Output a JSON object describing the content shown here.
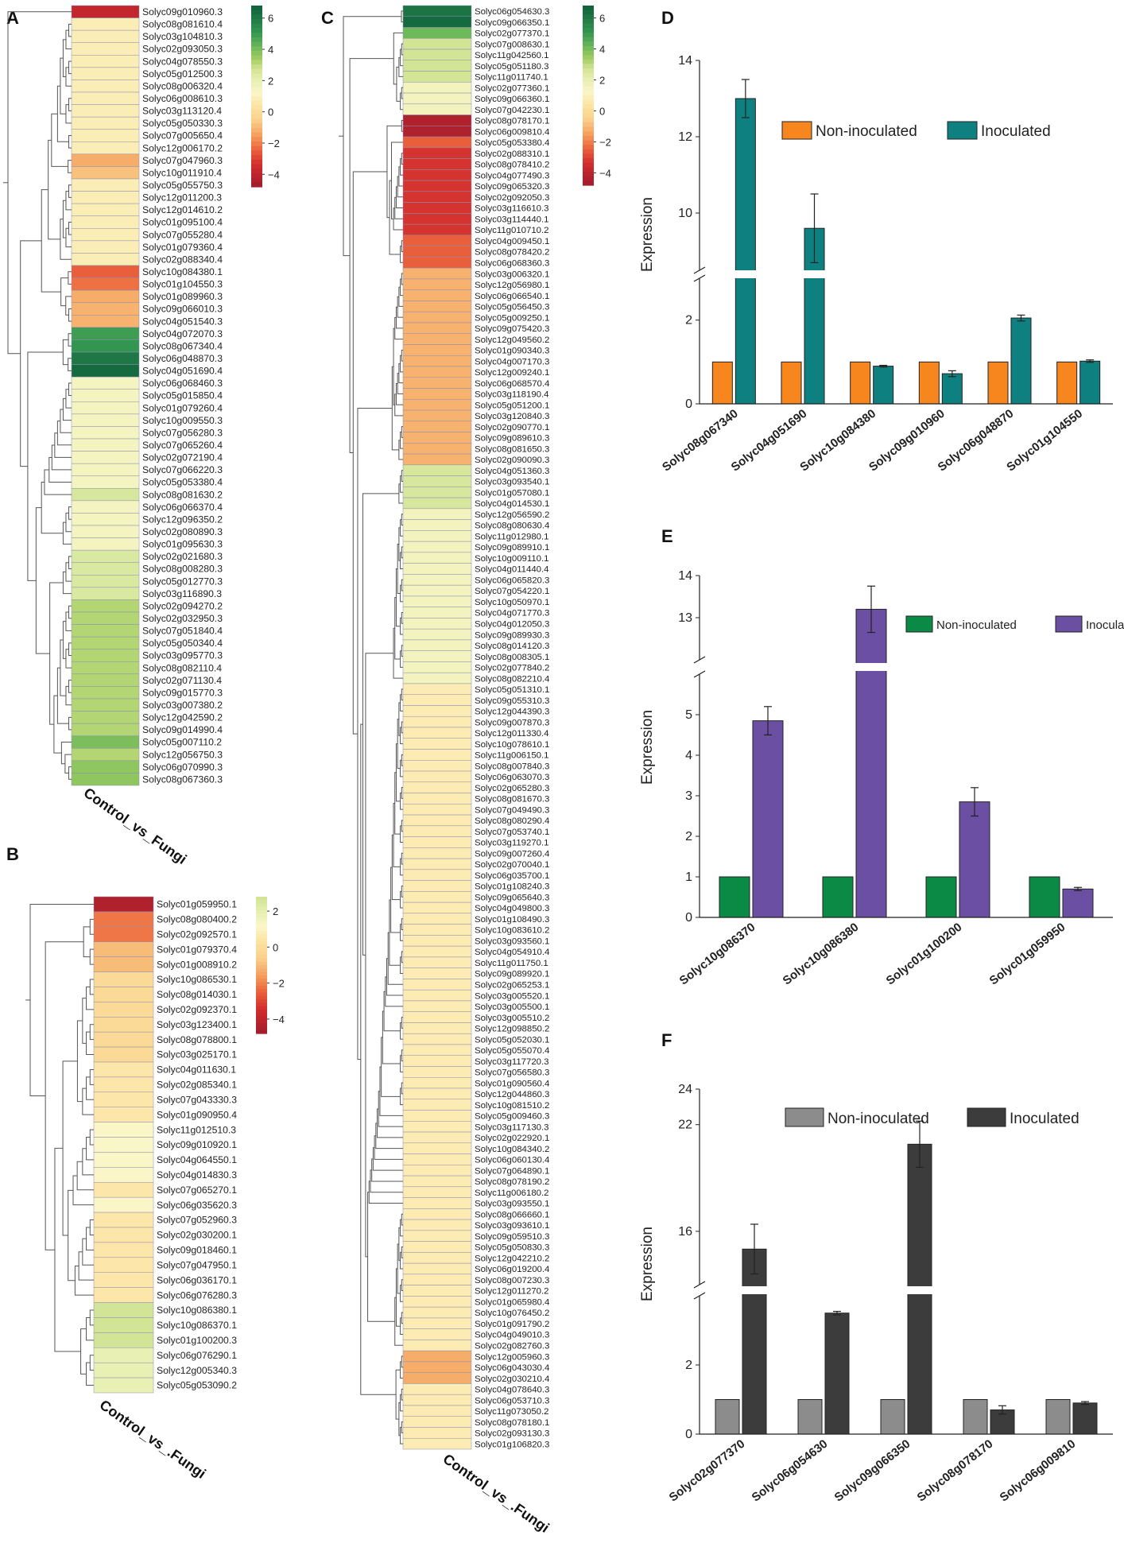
{
  "heatmaps": [
    {
      "panel": "A",
      "column_label": "Control_vs_Fungi",
      "scale_ticks": [
        "6",
        "4",
        "2",
        "0",
        "−2",
        "−4"
      ],
      "genes": [
        [
          "Solyc09g010960.3",
          -4
        ],
        [
          "Solyc08g081610.4",
          0.8
        ],
        [
          "Solyc03g104810.3",
          0.8
        ],
        [
          "Solyc02g093050.3",
          0.8
        ],
        [
          "Solyc04g078550.3",
          0.8
        ],
        [
          "Solyc05g012500.3",
          0.8
        ],
        [
          "Solyc08g006320.4",
          0.8
        ],
        [
          "Solyc06g008610.3",
          0.8
        ],
        [
          "Solyc03g113120.4",
          0.8
        ],
        [
          "Solyc05g050330.3",
          0.8
        ],
        [
          "Solyc07g005650.4",
          0.8
        ],
        [
          "Solyc12g006170.2",
          0.8
        ],
        [
          "Solyc07g047960.3",
          -1.3
        ],
        [
          "Solyc10g011910.4",
          -0.9
        ],
        [
          "Solyc05g055750.3",
          0.8
        ],
        [
          "Solyc12g011200.3",
          0.8
        ],
        [
          "Solyc12g014610.2",
          0.8
        ],
        [
          "Solyc01g095100.4",
          0.8
        ],
        [
          "Solyc07g055280.4",
          0.8
        ],
        [
          "Solyc01g079360.4",
          0.8
        ],
        [
          "Solyc02g088340.4",
          0.8
        ],
        [
          "Solyc10g084380.1",
          -2.6
        ],
        [
          "Solyc01g104550.3",
          -2.3
        ],
        [
          "Solyc01g089960.3",
          -1.3
        ],
        [
          "Solyc09g066010.3",
          -1.2
        ],
        [
          "Solyc04g051540.3",
          -1.2
        ],
        [
          "Solyc04g072070.3",
          5
        ],
        [
          "Solyc08g067340.4",
          5.2
        ],
        [
          "Solyc06g048870.3",
          6.2
        ],
        [
          "Solyc04g051690.4",
          6.6
        ],
        [
          "Solyc06g068460.3",
          1.5
        ],
        [
          "Solyc05g015850.4",
          1.5
        ],
        [
          "Solyc01g079260.4",
          1.5
        ],
        [
          "Solyc10g009550.3",
          1.5
        ],
        [
          "Solyc07g056280.3",
          1.5
        ],
        [
          "Solyc07g065260.4",
          1.5
        ],
        [
          "Solyc02g072190.4",
          1.5
        ],
        [
          "Solyc07g066220.3",
          1.5
        ],
        [
          "Solyc05g053380.4",
          1.5
        ],
        [
          "Solyc08g081630.2",
          2.6
        ],
        [
          "Solyc06g066370.4",
          1.5
        ],
        [
          "Solyc12g096350.2",
          1.5
        ],
        [
          "Solyc02g080890.3",
          1.5
        ],
        [
          "Solyc01g095630.3",
          1.5
        ],
        [
          "Solyc02g021680.3",
          2.5
        ],
        [
          "Solyc08g008280.3",
          2.5
        ],
        [
          "Solyc05g012770.3",
          2.5
        ],
        [
          "Solyc03g116890.3",
          2.5
        ],
        [
          "Solyc02g094270.2",
          3.2
        ],
        [
          "Solyc02g032950.3",
          3.2
        ],
        [
          "Solyc07g051840.4",
          3.2
        ],
        [
          "Solyc05g050340.4",
          3.2
        ],
        [
          "Solyc03g095770.3",
          3.2
        ],
        [
          "Solyc08g082110.4",
          3.2
        ],
        [
          "Solyc02g071130.4",
          3.2
        ],
        [
          "Solyc09g015770.3",
          3.2
        ],
        [
          "Solyc03g007380.2",
          3.2
        ],
        [
          "Solyc12g042590.2",
          3.2
        ],
        [
          "Solyc09g014990.4",
          3.2
        ],
        [
          "Solyc05g007110.2",
          4
        ],
        [
          "Solyc12g056750.3",
          3.2
        ],
        [
          "Solyc06g070990.3",
          3.7
        ],
        [
          "Solyc08g067360.3",
          3.7
        ]
      ]
    },
    {
      "panel": "B",
      "column_label": "Control_vs_.Fungi",
      "scale_ticks": [
        "2",
        "0",
        "−2",
        "−4"
      ],
      "genes": [
        [
          "Solyc01g059950.1",
          -4.5
        ],
        [
          "Solyc08g080400.2",
          -2.2
        ],
        [
          "Solyc02g092570.1",
          -2.2
        ],
        [
          "Solyc01g079370.4",
          -1.0
        ],
        [
          "Solyc01g008910.2",
          -1.0
        ],
        [
          "Solyc10g086530.1",
          -0.1
        ],
        [
          "Solyc08g014030.1",
          -0.1
        ],
        [
          "Solyc02g092370.1",
          -0.1
        ],
        [
          "Solyc03g123400.1",
          -0.1
        ],
        [
          "Solyc08g078800.1",
          -0.1
        ],
        [
          "Solyc03g025170.1",
          -0.1
        ],
        [
          "Solyc04g011630.1",
          0.5
        ],
        [
          "Solyc02g085340.1",
          0.5
        ],
        [
          "Solyc07g043330.3",
          0.5
        ],
        [
          "Solyc01g090950.4",
          0.5
        ],
        [
          "Solyc11g012510.3",
          1.2
        ],
        [
          "Solyc09g010920.1",
          1.2
        ],
        [
          "Solyc04g064550.1",
          1.2
        ],
        [
          "Solyc04g014830.3",
          1.2
        ],
        [
          "Solyc07g065270.1",
          0.5
        ],
        [
          "Solyc06g035620.3",
          1.2
        ],
        [
          "Solyc07g052960.3",
          0.5
        ],
        [
          "Solyc02g030200.1",
          0.5
        ],
        [
          "Solyc09g018460.1",
          0.5
        ],
        [
          "Solyc07g047950.1",
          0.5
        ],
        [
          "Solyc06g036170.1",
          0.5
        ],
        [
          "Solyc06g076280.3",
          0.5
        ],
        [
          "Solyc10g086380.1",
          2.8
        ],
        [
          "Solyc10g086370.1",
          2.8
        ],
        [
          "Solyc01g100200.3",
          2.8
        ],
        [
          "Solyc06g076290.1",
          2.0
        ],
        [
          "Solyc12g005340.3",
          2.0
        ],
        [
          "Solyc05g053090.2",
          2.0
        ]
      ]
    },
    {
      "panel": "C",
      "column_label": "Control_vs_.Fungi",
      "scale_ticks": [
        "6",
        "4",
        "2",
        "0",
        "−2",
        "−4"
      ],
      "genes": [
        [
          "Solyc06g054630.3",
          6.3
        ],
        [
          "Solyc09g066350.1",
          6.6
        ],
        [
          "Solyc02g077370.1",
          4.2
        ],
        [
          "Solyc07g008630.1",
          2.8
        ],
        [
          "Solyc11g042560.1",
          2.8
        ],
        [
          "Solyc05g051180.3",
          2.8
        ],
        [
          "Solyc11g011740.1",
          2.8
        ],
        [
          "Solyc02g077360.1",
          1.6
        ],
        [
          "Solyc09g066360.1",
          1.6
        ],
        [
          "Solyc07g042230.1",
          1.6
        ],
        [
          "Solyc08g078170.1",
          -4.5
        ],
        [
          "Solyc06g009810.4",
          -4.5
        ],
        [
          "Solyc05g053380.4",
          -2.6
        ],
        [
          "Solyc02g088310.1",
          -3.4
        ],
        [
          "Solyc08g078410.2",
          -3.4
        ],
        [
          "Solyc04g077490.3",
          -3.4
        ],
        [
          "Solyc09g065320.3",
          -3.4
        ],
        [
          "Solyc02g092050.3",
          -3.4
        ],
        [
          "Solyc03g116610.3",
          -3.4
        ],
        [
          "Solyc03g114440.1",
          -3.4
        ],
        [
          "Solyc11g010710.2",
          -3.4
        ],
        [
          "Solyc04g009450.1",
          -2.6
        ],
        [
          "Solyc08g078420.2",
          -2.6
        ],
        [
          "Solyc06g068360.3",
          -2.6
        ],
        [
          "Solyc03g006320.1",
          -1.2
        ],
        [
          "Solyc12g056980.1",
          -1.2
        ],
        [
          "Solyc06g066540.1",
          -1.2
        ],
        [
          "Solyc05g056450.3",
          -1.2
        ],
        [
          "Solyc05g009250.1",
          -1.2
        ],
        [
          "Solyc09g075420.3",
          -1.2
        ],
        [
          "Solyc12g049560.2",
          -1.2
        ],
        [
          "Solyc01g090340.3",
          -1.2
        ],
        [
          "Solyc04g007170.3",
          -1.2
        ],
        [
          "Solyc12g009240.1",
          -1.2
        ],
        [
          "Solyc06g068570.4",
          -1.2
        ],
        [
          "Solyc03g118190.4",
          -1.2
        ],
        [
          "Solyc05g051200.1",
          -1.2
        ],
        [
          "Solyc03g120840.3",
          -1.2
        ],
        [
          "Solyc02g090770.1",
          -1.2
        ],
        [
          "Solyc09g089610.3",
          -1.2
        ],
        [
          "Solyc08g081650.3",
          -1.2
        ],
        [
          "Solyc02g090090.3",
          -1.2
        ],
        [
          "Solyc04g051360.3",
          2.6
        ],
        [
          "Solyc03g093540.1",
          2.6
        ],
        [
          "Solyc01g057080.1",
          2.6
        ],
        [
          "Solyc04g014530.1",
          2.6
        ],
        [
          "Solyc12g056590.2",
          1.6
        ],
        [
          "Solyc08g080630.4",
          1.6
        ],
        [
          "Solyc11g012980.1",
          1.6
        ],
        [
          "Solyc09g089910.1",
          1.6
        ],
        [
          "Solyc10g009110.1",
          1.6
        ],
        [
          "Solyc04g011440.4",
          1.6
        ],
        [
          "Solyc06g065820.3",
          1.6
        ],
        [
          "Solyc07g054220.1",
          1.6
        ],
        [
          "Solyc10g050970.1",
          1.6
        ],
        [
          "Solyc04g071770.3",
          1.6
        ],
        [
          "Solyc04g012050.3",
          1.6
        ],
        [
          "Solyc09g089930.3",
          1.6
        ],
        [
          "Solyc08g014120.3",
          1.6
        ],
        [
          "Solyc08g008305.1",
          1.6
        ],
        [
          "Solyc02g077840.2",
          1.6
        ],
        [
          "Solyc08g082210.4",
          1.6
        ],
        [
          "Solyc05g051310.1",
          0.7
        ],
        [
          "Solyc09g055310.3",
          0.7
        ],
        [
          "Solyc12g044390.3",
          0.7
        ],
        [
          "Solyc09g007870.3",
          0.7
        ],
        [
          "Solyc12g011330.4",
          0.7
        ],
        [
          "Solyc10g078610.1",
          0.7
        ],
        [
          "Solyc11g006150.1",
          0.7
        ],
        [
          "Solyc08g007840.3",
          0.7
        ],
        [
          "Solyc06g063070.3",
          0.7
        ],
        [
          "Solyc02g065280.3",
          0.7
        ],
        [
          "Solyc08g081670.3",
          0.7
        ],
        [
          "Solyc07g049490.3",
          0.7
        ],
        [
          "Solyc08g080290.4",
          0.7
        ],
        [
          "Solyc07g053740.1",
          0.7
        ],
        [
          "Solyc03g119270.1",
          0.7
        ],
        [
          "Solyc09g007260.4",
          0.7
        ],
        [
          "Solyc02g070040.1",
          0.7
        ],
        [
          "Solyc06g035700.1",
          0.7
        ],
        [
          "Solyc01g108240.3",
          0.7
        ],
        [
          "Solyc09g065640.3",
          0.7
        ],
        [
          "Solyc04g049800.3",
          0.7
        ],
        [
          "Solyc01g108490.3",
          0.7
        ],
        [
          "Solyc10g083610.2",
          0.7
        ],
        [
          "Solyc03g093560.1",
          0.7
        ],
        [
          "Solyc04g054910.4",
          0.7
        ],
        [
          "Solyc11g011750.1",
          0.7
        ],
        [
          "Solyc09g089920.1",
          0.7
        ],
        [
          "Solyc02g065253.1",
          0.7
        ],
        [
          "Solyc03g005520.1",
          0.7
        ],
        [
          "Solyc03g005500.1",
          0.7
        ],
        [
          "Solyc03g005510.2",
          0.7
        ],
        [
          "Solyc12g098850.2",
          0.7
        ],
        [
          "Solyc05g052030.1",
          0.7
        ],
        [
          "Solyc05g055070.4",
          0.7
        ],
        [
          "Solyc03g117720.3",
          0.7
        ],
        [
          "Solyc07g056580.3",
          0.7
        ],
        [
          "Solyc01g090560.4",
          0.7
        ],
        [
          "Solyc12g044860.3",
          0.7
        ],
        [
          "Solyc10g081510.2",
          0.7
        ],
        [
          "Solyc05g009460.3",
          0.7
        ],
        [
          "Solyc03g117130.3",
          0.7
        ],
        [
          "Solyc02g022920.1",
          0.7
        ],
        [
          "Solyc10g084340.2",
          0.7
        ],
        [
          "Solyc06g060130.4",
          0.7
        ],
        [
          "Solyc07g064890.1",
          0.7
        ],
        [
          "Solyc08g078190.2",
          0.7
        ],
        [
          "Solyc11g006180.2",
          0.7
        ],
        [
          "Solyc03g093550.1",
          0.7
        ],
        [
          "Solyc08g066660.1",
          0.7
        ],
        [
          "Solyc03g093610.1",
          0.7
        ],
        [
          "Solyc09g059510.3",
          0.7
        ],
        [
          "Solyc05g050830.3",
          0.7
        ],
        [
          "Solyc12g042210.2",
          0.7
        ],
        [
          "Solyc06g019200.4",
          0.7
        ],
        [
          "Solyc08g007230.3",
          0.7
        ],
        [
          "Solyc12g011270.2",
          0.7
        ],
        [
          "Solyc01g065980.4",
          0.7
        ],
        [
          "Solyc10g076450.2",
          0.7
        ],
        [
          "Solyc01g091790.2",
          0.7
        ],
        [
          "Solyc04g049010.3",
          0.7
        ],
        [
          "Solyc02g082760.3",
          0.7
        ],
        [
          "Solyc12g005960.3",
          -1.3
        ],
        [
          "Solyc06g043030.4",
          -1.3
        ],
        [
          "Solyc02g030210.4",
          -1.3
        ],
        [
          "Solyc04g078640.3",
          0.7
        ],
        [
          "Solyc06g053710.3",
          0.7
        ],
        [
          "Solyc11g073050.2",
          0.7
        ],
        [
          "Solyc08g078180.1",
          0.7
        ],
        [
          "Solyc02g093130.3",
          0.7
        ],
        [
          "Solyc01g106820.3",
          0.7
        ]
      ]
    }
  ],
  "chart_data": [
    {
      "panel": "D",
      "type": "bar",
      "categories": [
        "Solyc08g067340",
        "Solyc04g051690",
        "Solyc10g084380",
        "Solyc09g010960",
        "Solyc06g048870",
        "Solyc01g104550"
      ],
      "series": [
        {
          "name": "Non-inoculated",
          "color": "#f7861f",
          "values": [
            1,
            1,
            1,
            1,
            1,
            1
          ],
          "errors": [
            0,
            0,
            0,
            0,
            0,
            0
          ]
        },
        {
          "name": "Inoculated",
          "color": "#0f8080",
          "values": [
            13.0,
            9.6,
            0.9,
            0.72,
            2.05,
            1.02
          ],
          "errors": [
            0.5,
            0.9,
            0.02,
            0.07,
            0.07,
            0.03
          ]
        }
      ],
      "ylabel": "Expression",
      "yticks": [
        0,
        2,
        10,
        12,
        14
      ],
      "ylim_lower": [
        0,
        3
      ],
      "ylim_upper": [
        8.5,
        14
      ]
    },
    {
      "panel": "E",
      "type": "bar",
      "categories": [
        "Solyc10g086370",
        "Solyc10g086380",
        "Solyc01g100200",
        "Solyc01g059950"
      ],
      "series": [
        {
          "name": "Non-inoculated",
          "color": "#0b8a45",
          "values": [
            1,
            1,
            1,
            1
          ],
          "errors": [
            0,
            0,
            0,
            0
          ]
        },
        {
          "name": "Inoculated",
          "color": "#6b4fa3",
          "values": [
            4.85,
            13.2,
            2.85,
            0.7
          ],
          "errors": [
            0.35,
            0.55,
            0.35,
            0.04
          ]
        }
      ],
      "ylabel": "Expression",
      "yticks": [
        0,
        1,
        2,
        3,
        4,
        5,
        13,
        14
      ],
      "ylim_lower": [
        0,
        6
      ],
      "ylim_upper": [
        12,
        14
      ]
    },
    {
      "panel": "F",
      "type": "bar",
      "categories": [
        "Solyc02g077370",
        "Solyc06g054630",
        "Solyc09g066350",
        "Solyc08g078170",
        "Solyc06g009810"
      ],
      "series": [
        {
          "name": "Non-inoculated",
          "color": "#8c8c8c",
          "values": [
            1,
            1,
            1,
            1,
            1
          ],
          "errors": [
            0,
            0,
            0,
            0,
            0
          ]
        },
        {
          "name": "Inoculated",
          "color": "#3c3c3c",
          "values": [
            15.0,
            3.5,
            20.9,
            0.7,
            0.9
          ],
          "errors": [
            1.4,
            0.05,
            1.3,
            0.12,
            0.04
          ]
        }
      ],
      "ylabel": "Expression",
      "yticks": [
        0,
        2,
        16,
        22,
        24
      ],
      "ylim_lower": [
        0,
        4
      ],
      "ylim_upper": [
        13,
        24
      ]
    }
  ]
}
